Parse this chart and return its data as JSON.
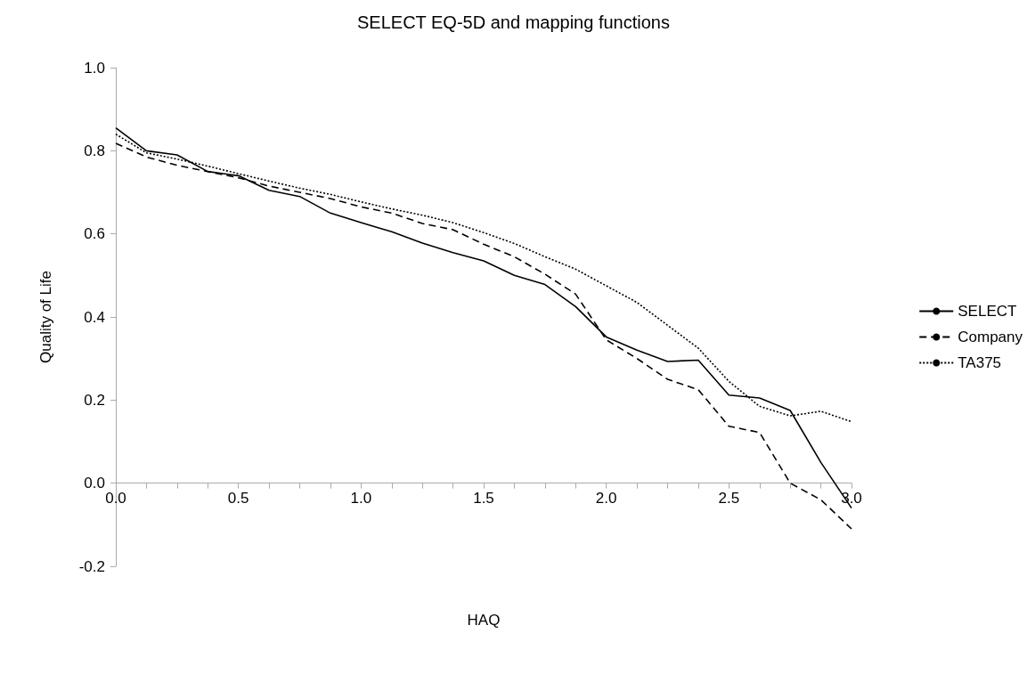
{
  "chart_data": {
    "type": "line",
    "title": "SELECT EQ-5D and mapping functions",
    "xlabel": "HAQ",
    "ylabel": "Quality of Life",
    "x": [
      0,
      0.125,
      0.25,
      0.375,
      0.5,
      0.625,
      0.75,
      0.875,
      1,
      1.125,
      1.25,
      1.375,
      1.5,
      1.625,
      1.75,
      1.875,
      2,
      2.125,
      2.25,
      2.375,
      2.5,
      2.625,
      2.75,
      2.875,
      3
    ],
    "series": [
      {
        "name": "SELECT",
        "color": "#000000",
        "line_style": "solid",
        "values": [
          0.855,
          0.8,
          0.79,
          0.75,
          0.74,
          0.705,
          0.69,
          0.65,
          0.627,
          0.605,
          0.578,
          0.555,
          0.535,
          0.5,
          0.478,
          0.425,
          0.352,
          0.32,
          0.293,
          0.296,
          0.212,
          0.205,
          0.175,
          0.05,
          -0.06
        ]
      },
      {
        "name": "Company",
        "color": "#000000",
        "line_style": "dashed",
        "values": [
          0.818,
          0.785,
          0.765,
          0.75,
          0.735,
          0.715,
          0.7,
          0.685,
          0.665,
          0.65,
          0.625,
          0.61,
          0.575,
          0.545,
          0.503,
          0.455,
          0.345,
          0.3,
          0.25,
          0.225,
          0.137,
          0.122,
          0.0,
          -0.04,
          -0.11
        ]
      },
      {
        "name": "TA375",
        "color": "#000000",
        "line_style": "dotted",
        "values": [
          0.84,
          0.795,
          0.78,
          0.763,
          0.745,
          0.727,
          0.71,
          0.695,
          0.677,
          0.66,
          0.645,
          0.627,
          0.603,
          0.577,
          0.545,
          0.515,
          0.475,
          0.435,
          0.38,
          0.325,
          0.245,
          0.185,
          0.162,
          0.173,
          0.148
        ]
      }
    ],
    "xlim": [
      0,
      3
    ],
    "xticks": [
      {
        "value": 0,
        "label": "0.0"
      },
      {
        "value": 0.125,
        "label": null
      },
      {
        "value": 0.25,
        "label": null
      },
      {
        "value": 0.375,
        "label": null
      },
      {
        "value": 0.5,
        "label": "0.5"
      },
      {
        "value": 0.625,
        "label": null
      },
      {
        "value": 0.75,
        "label": null
      },
      {
        "value": 0.875,
        "label": null
      },
      {
        "value": 1,
        "label": "1.0"
      },
      {
        "value": 1.125,
        "label": null
      },
      {
        "value": 1.25,
        "label": null
      },
      {
        "value": 1.375,
        "label": null
      },
      {
        "value": 1.5,
        "label": "1.5"
      },
      {
        "value": 1.625,
        "label": null
      },
      {
        "value": 1.75,
        "label": null
      },
      {
        "value": 1.875,
        "label": null
      },
      {
        "value": 2,
        "label": "2.0"
      },
      {
        "value": 2.125,
        "label": null
      },
      {
        "value": 2.25,
        "label": null
      },
      {
        "value": 2.375,
        "label": null
      },
      {
        "value": 2.5,
        "label": "2.5"
      },
      {
        "value": 2.625,
        "label": null
      },
      {
        "value": 2.75,
        "label": null
      },
      {
        "value": 2.875,
        "label": null
      },
      {
        "value": 3,
        "label": "3.0"
      }
    ],
    "ylim": [
      -0.2,
      1.0
    ],
    "yticks": [
      {
        "value": -0.2,
        "label": "-0.2"
      },
      {
        "value": 0,
        "label": "0.0"
      },
      {
        "value": 0.2,
        "label": "0.2"
      },
      {
        "value": 0.4,
        "label": "0.4"
      },
      {
        "value": 0.6,
        "label": "0.6"
      },
      {
        "value": 0.8,
        "label": "0.8"
      },
      {
        "value": 1.0,
        "label": "1.0"
      }
    ],
    "grid": false,
    "legend": "right",
    "marker": "none"
  }
}
